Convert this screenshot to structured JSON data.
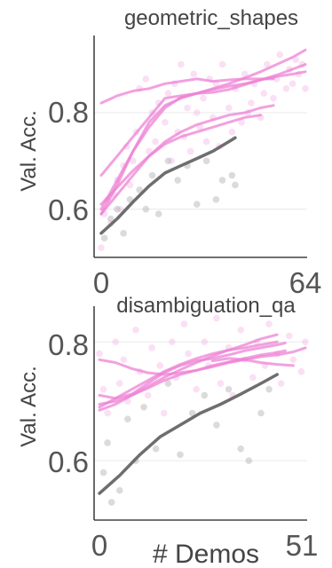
{
  "chart_data": [
    {
      "type": "line",
      "title": "geometric_shapes",
      "ylabel": "Val. Acc.",
      "xlabel": "",
      "xlim": [
        0,
        64
      ],
      "ylim": [
        0.5,
        0.96
      ],
      "xticks": [
        0,
        64
      ],
      "xtick_labels": [
        "0",
        "64"
      ],
      "yticks": [
        0.6,
        0.8
      ],
      "ytick_labels": [
        "0.6",
        "0.8"
      ],
      "grid": true,
      "series": [
        {
          "color": "#ee82d4",
          "x": [
            0,
            5,
            10,
            15,
            20,
            25,
            30,
            35,
            40,
            45,
            50,
            55,
            60,
            64
          ],
          "y": [
            0.67,
            0.71,
            0.75,
            0.79,
            0.83,
            0.835,
            0.84,
            0.848,
            0.855,
            0.86,
            0.868,
            0.875,
            0.88,
            0.885
          ]
        },
        {
          "color": "#ee82d4",
          "x": [
            0,
            5,
            10,
            15,
            20,
            25,
            30,
            35,
            40,
            45,
            50,
            55,
            60,
            64
          ],
          "y": [
            0.59,
            0.65,
            0.72,
            0.78,
            0.815,
            0.83,
            0.84,
            0.85,
            0.86,
            0.872,
            0.885,
            0.9,
            0.915,
            0.93
          ]
        },
        {
          "color": "#ee82d4",
          "x": [
            0,
            5,
            10,
            15,
            20,
            25,
            30,
            35,
            40,
            45,
            50,
            55,
            60,
            64
          ],
          "y": [
            0.6,
            0.66,
            0.72,
            0.77,
            0.81,
            0.832,
            0.84,
            0.842,
            0.848,
            0.858,
            0.868,
            0.878,
            0.89,
            0.9
          ]
        },
        {
          "color": "#ee82d4",
          "x": [
            0,
            5,
            10,
            15,
            20,
            25,
            30,
            35,
            40,
            45,
            50
          ],
          "y": [
            0.61,
            0.645,
            0.68,
            0.71,
            0.735,
            0.75,
            0.76,
            0.77,
            0.78,
            0.79,
            0.795
          ]
        },
        {
          "color": "#ee82d4",
          "x": [
            0,
            5,
            10,
            15,
            20,
            25,
            30,
            35,
            40,
            45,
            50,
            54
          ],
          "y": [
            0.59,
            0.63,
            0.67,
            0.71,
            0.74,
            0.76,
            0.775,
            0.785,
            0.795,
            0.8,
            0.81,
            0.815
          ]
        },
        {
          "color": "#ee82d4",
          "x": [
            0,
            5,
            10,
            15,
            20,
            25,
            30,
            35,
            40,
            45,
            50,
            54
          ],
          "y": [
            0.82,
            0.835,
            0.845,
            0.85,
            0.86,
            0.865,
            0.87,
            0.865,
            0.868,
            0.87,
            0.87,
            0.87
          ]
        },
        {
          "color": "#6e6e6e",
          "x": [
            0,
            5,
            10,
            15,
            20,
            25,
            30,
            35,
            40,
            42
          ],
          "y": [
            0.55,
            0.58,
            0.615,
            0.648,
            0.675,
            0.69,
            0.705,
            0.72,
            0.74,
            0.748
          ]
        }
      ],
      "scatter": {
        "pink": [
          [
            0,
            0.52
          ],
          [
            1,
            0.59
          ],
          [
            2,
            0.62
          ],
          [
            3,
            0.57
          ],
          [
            4,
            0.63
          ],
          [
            5,
            0.66
          ],
          [
            6,
            0.6
          ],
          [
            7,
            0.69
          ],
          [
            8,
            0.73
          ],
          [
            9,
            0.65
          ],
          [
            10,
            0.7
          ],
          [
            11,
            0.76
          ],
          [
            12,
            0.85
          ],
          [
            14,
            0.87
          ],
          [
            15,
            0.72
          ],
          [
            16,
            0.8
          ],
          [
            17,
            0.74
          ],
          [
            18,
            0.82
          ],
          [
            20,
            0.78
          ],
          [
            21,
            0.84
          ],
          [
            22,
            0.7
          ],
          [
            23,
            0.86
          ],
          [
            24,
            0.76
          ],
          [
            25,
            0.9
          ],
          [
            26,
            0.75
          ],
          [
            27,
            0.81
          ],
          [
            28,
            0.72
          ],
          [
            29,
            0.88
          ],
          [
            30,
            0.8
          ],
          [
            31,
            0.77
          ],
          [
            32,
            0.83
          ],
          [
            33,
            0.74
          ],
          [
            34,
            0.87
          ],
          [
            35,
            0.79
          ],
          [
            36,
            0.86
          ],
          [
            37,
            0.73
          ],
          [
            38,
            0.9
          ],
          [
            40,
            0.81
          ],
          [
            41,
            0.76
          ],
          [
            42,
            0.85
          ],
          [
            44,
            0.78
          ],
          [
            45,
            0.88
          ],
          [
            46,
            0.8
          ],
          [
            47,
            0.82
          ],
          [
            48,
            0.86
          ],
          [
            50,
            0.79
          ],
          [
            51,
            0.84
          ],
          [
            52,
            0.9
          ],
          [
            54,
            0.83
          ],
          [
            55,
            0.87
          ],
          [
            56,
            0.92
          ],
          [
            58,
            0.85
          ],
          [
            59,
            0.89
          ],
          [
            60,
            0.86
          ],
          [
            61,
            0.91
          ],
          [
            62,
            0.88
          ],
          [
            63,
            0.9
          ],
          [
            64,
            0.85
          ]
        ],
        "gray": [
          [
            1,
            0.54
          ],
          [
            3,
            0.58
          ],
          [
            5,
            0.6
          ],
          [
            7,
            0.55
          ],
          [
            9,
            0.62
          ],
          [
            12,
            0.64
          ],
          [
            14,
            0.6
          ],
          [
            16,
            0.67
          ],
          [
            18,
            0.59
          ],
          [
            21,
            0.7
          ],
          [
            24,
            0.66
          ],
          [
            27,
            0.69
          ],
          [
            30,
            0.61
          ],
          [
            33,
            0.7
          ],
          [
            36,
            0.62
          ],
          [
            38,
            0.66
          ],
          [
            41,
            0.67
          ],
          [
            42,
            0.65
          ]
        ]
      }
    },
    {
      "type": "line",
      "title": "disambiguation_qa",
      "ylabel": "Val. Acc.",
      "xlabel": "# Demos",
      "xlim": [
        0,
        51
      ],
      "ylim": [
        0.5,
        0.86
      ],
      "xticks": [
        0,
        51
      ],
      "xtick_labels": [
        "0",
        "51"
      ],
      "yticks": [
        0.6,
        0.8
      ],
      "ytick_labels": [
        "0.6",
        "0.8"
      ],
      "grid": true,
      "series": [
        {
          "color": "#ee82d4",
          "x": [
            0,
            4,
            8,
            12,
            16,
            20,
            24,
            28,
            32,
            36,
            40,
            44,
            48,
            51
          ],
          "y": [
            0.77,
            0.765,
            0.755,
            0.748,
            0.745,
            0.748,
            0.752,
            0.758,
            0.765,
            0.77,
            0.775,
            0.778,
            0.783,
            0.79
          ]
        },
        {
          "color": "#ee82d4",
          "x": [
            0,
            4,
            8,
            12,
            16,
            20,
            24,
            28,
            32,
            36,
            40,
            44
          ],
          "y": [
            0.69,
            0.705,
            0.72,
            0.735,
            0.75,
            0.762,
            0.772,
            0.78,
            0.786,
            0.79,
            0.795,
            0.8
          ]
        },
        {
          "color": "#ee82d4",
          "x": [
            0,
            4,
            8,
            12,
            16,
            20,
            24,
            28,
            32,
            36,
            40,
            44
          ],
          "y": [
            0.685,
            0.695,
            0.71,
            0.725,
            0.74,
            0.753,
            0.765,
            0.776,
            0.786,
            0.795,
            0.805,
            0.812
          ]
        },
        {
          "color": "#ee82d4",
          "x": [
            0,
            4,
            8,
            12,
            16,
            20,
            24,
            28,
            32,
            36,
            40,
            44,
            46
          ],
          "y": [
            0.71,
            0.705,
            0.712,
            0.73,
            0.748,
            0.76,
            0.768,
            0.772,
            0.778,
            0.785,
            0.79,
            0.795,
            0.798
          ]
        },
        {
          "color": "#ee82d4",
          "x": [
            0,
            4,
            8,
            12,
            16,
            20,
            24,
            28,
            32,
            36,
            40,
            44,
            46
          ],
          "y": [
            0.695,
            0.7,
            0.71,
            0.722,
            0.735,
            0.745,
            0.752,
            0.76,
            0.766,
            0.772,
            0.778,
            0.782,
            0.785
          ]
        },
        {
          "color": "#ee82d4",
          "x": [
            28,
            32,
            36,
            40,
            44,
            48
          ],
          "y": [
            0.768,
            0.772,
            0.77,
            0.765,
            0.762,
            0.76
          ]
        },
        {
          "color": "#6e6e6e",
          "x": [
            0,
            5,
            10,
            15,
            20,
            25,
            30,
            35,
            40,
            44
          ],
          "y": [
            0.545,
            0.575,
            0.61,
            0.64,
            0.66,
            0.68,
            0.695,
            0.712,
            0.73,
            0.745
          ]
        }
      ],
      "scatter": {
        "pink": [
          [
            0,
            0.78
          ],
          [
            1,
            0.72
          ],
          [
            2,
            0.68
          ],
          [
            4,
            0.8
          ],
          [
            5,
            0.73
          ],
          [
            6,
            0.77
          ],
          [
            7,
            0.7
          ],
          [
            9,
            0.82
          ],
          [
            10,
            0.75
          ],
          [
            12,
            0.71
          ],
          [
            13,
            0.79
          ],
          [
            15,
            0.76
          ],
          [
            16,
            0.68
          ],
          [
            18,
            0.8
          ],
          [
            19,
            0.74
          ],
          [
            21,
            0.83
          ],
          [
            22,
            0.78
          ],
          [
            24,
            0.72
          ],
          [
            26,
            0.8
          ],
          [
            27,
            0.76
          ],
          [
            29,
            0.84
          ],
          [
            30,
            0.73
          ],
          [
            32,
            0.79
          ],
          [
            33,
            0.71
          ],
          [
            35,
            0.82
          ],
          [
            36,
            0.77
          ],
          [
            38,
            0.74
          ],
          [
            39,
            0.8
          ],
          [
            41,
            0.76
          ],
          [
            42,
            0.83
          ],
          [
            44,
            0.78
          ],
          [
            45,
            0.73
          ],
          [
            47,
            0.81
          ],
          [
            48,
            0.77
          ],
          [
            50,
            0.75
          ],
          [
            51,
            0.8
          ]
        ],
        "gray": [
          [
            1,
            0.58
          ],
          [
            2,
            0.63
          ],
          [
            3,
            0.53
          ],
          [
            5,
            0.55
          ],
          [
            7,
            0.67
          ],
          [
            9,
            0.6
          ],
          [
            11,
            0.69
          ],
          [
            14,
            0.62
          ],
          [
            17,
            0.73
          ],
          [
            20,
            0.61
          ],
          [
            23,
            0.68
          ],
          [
            26,
            0.71
          ],
          [
            29,
            0.66
          ],
          [
            32,
            0.72
          ],
          [
            35,
            0.62
          ],
          [
            37,
            0.6
          ],
          [
            40,
            0.68
          ],
          [
            42,
            0.72
          ]
        ]
      }
    }
  ]
}
